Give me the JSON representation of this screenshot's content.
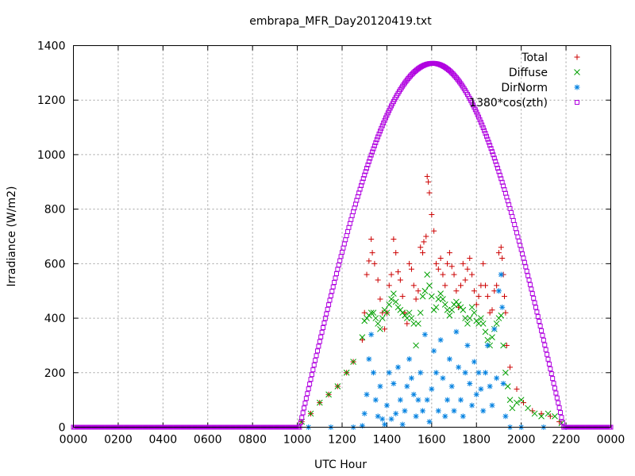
{
  "chart_data": {
    "type": "scatter",
    "title": "embrapa_MFR_Day20120419.txt",
    "xlabel": "UTC Hour",
    "ylabel": "Irradiance (W/m2)",
    "xlim": [
      0,
      24
    ],
    "ylim": [
      0,
      1400
    ],
    "x_ticks": [
      {
        "value": 0,
        "label": "0000"
      },
      {
        "value": 2,
        "label": "0200"
      },
      {
        "value": 4,
        "label": "0400"
      },
      {
        "value": 6,
        "label": "0600"
      },
      {
        "value": 8,
        "label": "0800"
      },
      {
        "value": 10,
        "label": "1000"
      },
      {
        "value": 12,
        "label": "1200"
      },
      {
        "value": 14,
        "label": "1400"
      },
      {
        "value": 16,
        "label": "1600"
      },
      {
        "value": 18,
        "label": "1800"
      },
      {
        "value": 20,
        "label": "2000"
      },
      {
        "value": 22,
        "label": "2200"
      },
      {
        "value": 24,
        "label": "0000"
      }
    ],
    "y_ticks": [
      0,
      200,
      400,
      600,
      800,
      1000,
      1200,
      1400
    ],
    "grid": true,
    "legend": "top-right",
    "series": [
      {
        "name": "Total",
        "marker": "plus",
        "color": "#cc0000",
        "points": [
          [
            10.2,
            20
          ],
          [
            10.6,
            50
          ],
          [
            11.0,
            90
          ],
          [
            11.4,
            120
          ],
          [
            11.8,
            150
          ],
          [
            12.2,
            200
          ],
          [
            12.5,
            240
          ],
          [
            12.9,
            320
          ],
          [
            13.0,
            420
          ],
          [
            13.1,
            560
          ],
          [
            13.2,
            610
          ],
          [
            13.3,
            690
          ],
          [
            13.35,
            640
          ],
          [
            13.45,
            600
          ],
          [
            13.6,
            540
          ],
          [
            13.7,
            470
          ],
          [
            13.8,
            420
          ],
          [
            13.9,
            360
          ],
          [
            14.0,
            420
          ],
          [
            14.1,
            520
          ],
          [
            14.2,
            560
          ],
          [
            14.3,
            690
          ],
          [
            14.4,
            640
          ],
          [
            14.5,
            570
          ],
          [
            14.6,
            540
          ],
          [
            14.7,
            480
          ],
          [
            14.8,
            420
          ],
          [
            14.9,
            380
          ],
          [
            15.0,
            600
          ],
          [
            15.1,
            580
          ],
          [
            15.2,
            520
          ],
          [
            15.3,
            470
          ],
          [
            15.4,
            500
          ],
          [
            15.5,
            660
          ],
          [
            15.6,
            640
          ],
          [
            15.65,
            680
          ],
          [
            15.75,
            700
          ],
          [
            15.8,
            920
          ],
          [
            15.85,
            900
          ],
          [
            15.9,
            860
          ],
          [
            16.0,
            780
          ],
          [
            16.1,
            720
          ],
          [
            16.2,
            600
          ],
          [
            16.3,
            580
          ],
          [
            16.4,
            620
          ],
          [
            16.5,
            560
          ],
          [
            16.6,
            520
          ],
          [
            16.7,
            600
          ],
          [
            16.8,
            640
          ],
          [
            16.9,
            590
          ],
          [
            17.0,
            560
          ],
          [
            17.1,
            500
          ],
          [
            17.2,
            440
          ],
          [
            17.3,
            520
          ],
          [
            17.4,
            600
          ],
          [
            17.5,
            540
          ],
          [
            17.6,
            580
          ],
          [
            17.7,
            620
          ],
          [
            17.8,
            560
          ],
          [
            17.9,
            500
          ],
          [
            18.0,
            450
          ],
          [
            18.1,
            480
          ],
          [
            18.2,
            520
          ],
          [
            18.3,
            600
          ],
          [
            18.4,
            520
          ],
          [
            18.5,
            480
          ],
          [
            18.6,
            420
          ],
          [
            18.7,
            430
          ],
          [
            18.8,
            500
          ],
          [
            18.9,
            520
          ],
          [
            19.0,
            640
          ],
          [
            19.1,
            660
          ],
          [
            19.15,
            620
          ],
          [
            19.2,
            560
          ],
          [
            19.25,
            480
          ],
          [
            19.3,
            420
          ],
          [
            19.35,
            300
          ],
          [
            19.5,
            220
          ],
          [
            19.8,
            140
          ],
          [
            20.1,
            90
          ],
          [
            20.5,
            60
          ],
          [
            20.9,
            50
          ],
          [
            21.3,
            40
          ],
          [
            21.7,
            20
          ]
        ]
      },
      {
        "name": "Diffuse",
        "marker": "cross",
        "color": "#00a000",
        "points": [
          [
            10.2,
            20
          ],
          [
            10.6,
            50
          ],
          [
            11.0,
            90
          ],
          [
            11.4,
            120
          ],
          [
            11.8,
            150
          ],
          [
            12.2,
            200
          ],
          [
            12.5,
            240
          ],
          [
            12.9,
            330
          ],
          [
            13.0,
            390
          ],
          [
            13.1,
            400
          ],
          [
            13.2,
            410
          ],
          [
            13.3,
            420
          ],
          [
            13.4,
            420
          ],
          [
            13.5,
            400
          ],
          [
            13.6,
            380
          ],
          [
            13.7,
            360
          ],
          [
            13.8,
            400
          ],
          [
            13.9,
            430
          ],
          [
            14.0,
            420
          ],
          [
            14.1,
            450
          ],
          [
            14.2,
            470
          ],
          [
            14.3,
            490
          ],
          [
            14.4,
            460
          ],
          [
            14.5,
            440
          ],
          [
            14.6,
            430
          ],
          [
            14.7,
            420
          ],
          [
            14.8,
            410
          ],
          [
            14.9,
            400
          ],
          [
            15.0,
            420
          ],
          [
            15.1,
            400
          ],
          [
            15.2,
            380
          ],
          [
            15.3,
            300
          ],
          [
            15.4,
            380
          ],
          [
            15.5,
            420
          ],
          [
            15.6,
            480
          ],
          [
            15.7,
            500
          ],
          [
            15.8,
            560
          ],
          [
            15.9,
            520
          ],
          [
            16.0,
            480
          ],
          [
            16.1,
            430
          ],
          [
            16.2,
            440
          ],
          [
            16.3,
            470
          ],
          [
            16.4,
            490
          ],
          [
            16.5,
            470
          ],
          [
            16.6,
            450
          ],
          [
            16.7,
            430
          ],
          [
            16.8,
            410
          ],
          [
            16.9,
            430
          ],
          [
            17.0,
            450
          ],
          [
            17.1,
            460
          ],
          [
            17.2,
            450
          ],
          [
            17.3,
            440
          ],
          [
            17.4,
            430
          ],
          [
            17.5,
            400
          ],
          [
            17.6,
            380
          ],
          [
            17.7,
            400
          ],
          [
            17.8,
            440
          ],
          [
            17.9,
            420
          ],
          [
            18.0,
            390
          ],
          [
            18.1,
            380
          ],
          [
            18.2,
            400
          ],
          [
            18.3,
            380
          ],
          [
            18.4,
            350
          ],
          [
            18.5,
            320
          ],
          [
            18.6,
            300
          ],
          [
            18.7,
            330
          ],
          [
            18.8,
            360
          ],
          [
            18.9,
            380
          ],
          [
            19.0,
            400
          ],
          [
            19.1,
            410
          ],
          [
            19.2,
            300
          ],
          [
            19.3,
            200
          ],
          [
            19.4,
            150
          ],
          [
            19.5,
            100
          ],
          [
            19.6,
            70
          ],
          [
            19.8,
            90
          ],
          [
            20.0,
            100
          ],
          [
            20.3,
            70
          ],
          [
            20.6,
            50
          ],
          [
            20.9,
            40
          ],
          [
            21.2,
            50
          ],
          [
            21.5,
            40
          ],
          [
            21.8,
            15
          ]
        ]
      },
      {
        "name": "DirNorm",
        "marker": "star",
        "color": "#0080e0",
        "points": [
          [
            10.5,
            0
          ],
          [
            11.5,
            0
          ],
          [
            12.5,
            0
          ],
          [
            12.9,
            5
          ],
          [
            13.0,
            50
          ],
          [
            13.1,
            120
          ],
          [
            13.2,
            250
          ],
          [
            13.3,
            340
          ],
          [
            13.4,
            200
          ],
          [
            13.5,
            100
          ],
          [
            13.6,
            40
          ],
          [
            13.7,
            150
          ],
          [
            13.8,
            30
          ],
          [
            13.9,
            10
          ],
          [
            14.0,
            80
          ],
          [
            14.1,
            200
          ],
          [
            14.2,
            30
          ],
          [
            14.3,
            160
          ],
          [
            14.4,
            50
          ],
          [
            14.5,
            220
          ],
          [
            14.6,
            100
          ],
          [
            14.7,
            10
          ],
          [
            14.8,
            60
          ],
          [
            14.9,
            150
          ],
          [
            15.0,
            250
          ],
          [
            15.1,
            180
          ],
          [
            15.2,
            120
          ],
          [
            15.3,
            40
          ],
          [
            15.4,
            100
          ],
          [
            15.5,
            200
          ],
          [
            15.6,
            60
          ],
          [
            15.7,
            340
          ],
          [
            15.8,
            100
          ],
          [
            15.9,
            20
          ],
          [
            16.0,
            140
          ],
          [
            16.1,
            280
          ],
          [
            16.2,
            200
          ],
          [
            16.3,
            60
          ],
          [
            16.4,
            320
          ],
          [
            16.5,
            180
          ],
          [
            16.6,
            40
          ],
          [
            16.7,
            100
          ],
          [
            16.8,
            250
          ],
          [
            16.9,
            150
          ],
          [
            17.0,
            60
          ],
          [
            17.1,
            350
          ],
          [
            17.2,
            220
          ],
          [
            17.3,
            100
          ],
          [
            17.4,
            40
          ],
          [
            17.5,
            200
          ],
          [
            17.6,
            300
          ],
          [
            17.7,
            160
          ],
          [
            17.8,
            80
          ],
          [
            17.9,
            240
          ],
          [
            18.0,
            120
          ],
          [
            18.1,
            200
          ],
          [
            18.2,
            140
          ],
          [
            18.3,
            60
          ],
          [
            18.4,
            200
          ],
          [
            18.5,
            300
          ],
          [
            18.6,
            150
          ],
          [
            18.7,
            80
          ],
          [
            18.8,
            360
          ],
          [
            18.9,
            180
          ],
          [
            19.0,
            500
          ],
          [
            19.1,
            560
          ],
          [
            19.15,
            440
          ],
          [
            19.2,
            160
          ],
          [
            19.3,
            40
          ],
          [
            19.5,
            0
          ],
          [
            20.0,
            0
          ],
          [
            21.0,
            0
          ],
          [
            22.0,
            0
          ]
        ]
      },
      {
        "name": "1380*cos(zth)",
        "marker": "square",
        "color": "#b000e0",
        "zero_before": 10.1,
        "zero_after": 21.9,
        "peak_x": 16.05,
        "peak_y": 1335
      }
    ]
  }
}
